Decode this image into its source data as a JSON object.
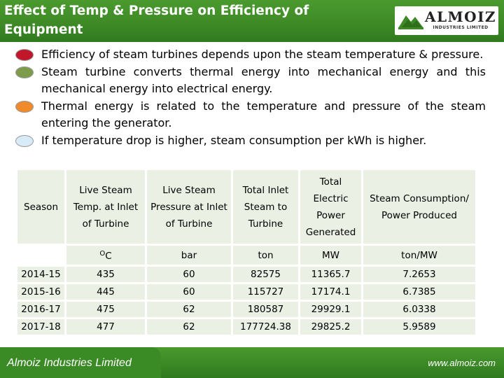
{
  "header": {
    "title": "Effect of Temp & Pressure on Efficiency of Equipment",
    "logo": {
      "name": "ALMOIZ",
      "tagline": "INDUSTRIES LIMITED",
      "accent": "#3f8a27"
    }
  },
  "bullets": [
    {
      "text": "Efficiency of steam turbines depends upon the steam temperature & pressure.",
      "color": "#c0182a"
    },
    {
      "text": "Steam turbine converts thermal energy into mechanical energy and this mechanical energy into electrical energy.",
      "color": "#7d9c4b"
    },
    {
      "text": "Thermal energy is related to the temperature and pressure of the steam entering the generator.",
      "color": "#f08a2a"
    },
    {
      "text": "If temperature drop is higher, steam consumption per kWh is higher.",
      "color": "#d7ecf8"
    }
  ],
  "table": {
    "headers": [
      "Season",
      "Live Steam Temp. at Inlet of Turbine",
      "Live Steam Pressure at Inlet of Turbine",
      "Total Inlet Steam to Turbine",
      "Total Electric Power Generated",
      "Steam Consumption/ Power Produced"
    ],
    "units": [
      "",
      "C",
      "bar",
      "ton",
      "MW",
      "ton/MW"
    ],
    "unit_sup": "O",
    "rows": [
      [
        "2014-15",
        "435",
        "60",
        "82575",
        "11365.7",
        "7.2653"
      ],
      [
        "2015-16",
        "445",
        "60",
        "115727",
        "17174.1",
        "6.7385"
      ],
      [
        "2016-17",
        "475",
        "62",
        "180587",
        "29929.1",
        "6.0338"
      ],
      [
        "2017-18",
        "477",
        "62",
        "177724.38",
        "29825.2",
        "5.9589"
      ]
    ]
  },
  "footer": {
    "company": "Almoiz Industries Limited",
    "website": "www.almoiz.com"
  }
}
